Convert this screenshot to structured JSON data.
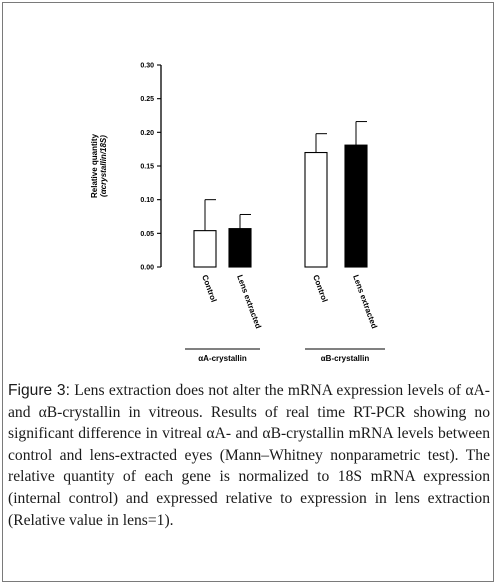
{
  "chart_data": {
    "type": "bar",
    "ylabel_line1": "Relative quantity",
    "ylabel_line2": "(αcrystallin/18S)",
    "ylim": [
      0,
      0.3
    ],
    "yticks": [
      "0.00",
      "0.05",
      "0.10",
      "0.15",
      "0.20",
      "0.25",
      "0.30"
    ],
    "groups": [
      {
        "label": "αA-crystallin",
        "bars": [
          {
            "category": "Control",
            "value": 0.054,
            "error": 0.046,
            "fill": "#ffffff"
          },
          {
            "category": "Lens extracted",
            "value": 0.057,
            "error": 0.021,
            "fill": "#000000"
          }
        ]
      },
      {
        "label": "αB-crystallin",
        "bars": [
          {
            "category": "Control",
            "value": 0.17,
            "error": 0.028,
            "fill": "#ffffff"
          },
          {
            "category": "Lens extracted",
            "value": 0.181,
            "error": 0.035,
            "fill": "#000000"
          }
        ]
      }
    ],
    "grid": false,
    "legend": "none"
  },
  "caption": {
    "label": "Figure 3:",
    "text": " Lens extraction does not alter the mRNA expression levels of αA- and αB-crystallin in vitreous. Results of real time RT-PCR showing no significant difference in vitreal αA- and αB-crystallin mRNA levels between control and lens-extracted eyes (Mann–Whitney nonparametric test). The relative quantity of each gene is normalized to 18S mRNA expression (internal control) and expressed relative to expression in lens extraction (Relative value in lens=1)."
  }
}
